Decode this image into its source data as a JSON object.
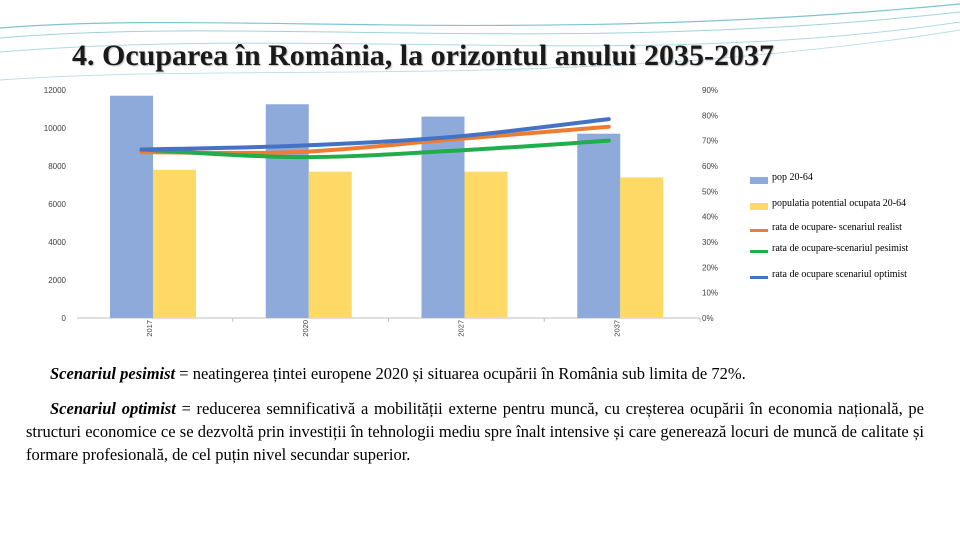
{
  "title": "4. Ocuparea în România, la orizontul anului 2035-2037",
  "colors": {
    "bar_pop": "#8eaadb",
    "bar_potential": "#ffd966",
    "line_realist": "#ed7d31",
    "line_pesimist": "#1fae4b",
    "line_optimist": "#4472c4",
    "deco_lines": "#5fb4c7"
  },
  "chart_data": {
    "type": "bar",
    "categories": [
      "2017",
      "2020",
      "2027",
      "2037"
    ],
    "left_axis": {
      "ticks": [
        "0",
        "2000",
        "4000",
        "6000",
        "8000",
        "10000",
        "12000"
      ],
      "ylim": [
        0,
        12000
      ]
    },
    "right_axis": {
      "ticks": [
        "0%",
        "10%",
        "20%",
        "30%",
        "40%",
        "50%",
        "60%",
        "70%",
        "80%",
        "90%"
      ],
      "ylim": [
        0,
        90
      ]
    },
    "series": [
      {
        "name": "pop 20-64",
        "kind": "bar",
        "axis": "left",
        "values": [
          11700,
          11250,
          10600,
          9700
        ]
      },
      {
        "name": "populatia potential ocupata 20-64",
        "kind": "bar",
        "axis": "left",
        "values": [
          7800,
          7700,
          7700,
          7400
        ]
      },
      {
        "name": "rata de ocupare- scenariul realist",
        "kind": "line",
        "axis": "right",
        "values": [
          65.5,
          65.5,
          70.5,
          75.5
        ]
      },
      {
        "name": "rata de ocupare-scenariul pesimist",
        "kind": "line",
        "axis": "right",
        "values": [
          66.5,
          63.5,
          66.0,
          70.0
        ]
      },
      {
        "name": "rata de ocupare scenariul optimist",
        "kind": "line",
        "axis": "right",
        "values": [
          66.5,
          68.0,
          71.5,
          78.5
        ]
      }
    ],
    "legend_position": "right",
    "grid": false
  },
  "text": {
    "p1_term": "Scenariul pesimist",
    "p1_rest": " = neatingerea țintei europene 2020 și situarea ocupării în România sub limita de 72%.",
    "p2_term": "Scenariul optimist",
    "p2_rest": " = reducerea semnificativă a mobilității externe pentru muncă, cu creșterea ocupării în economia națională, pe structuri economice ce se dezvoltă prin investiții în tehnologii mediu spre înalt intensive și care generează locuri de muncă de calitate și formare profesională, de cel puțin nivel secundar superior."
  }
}
